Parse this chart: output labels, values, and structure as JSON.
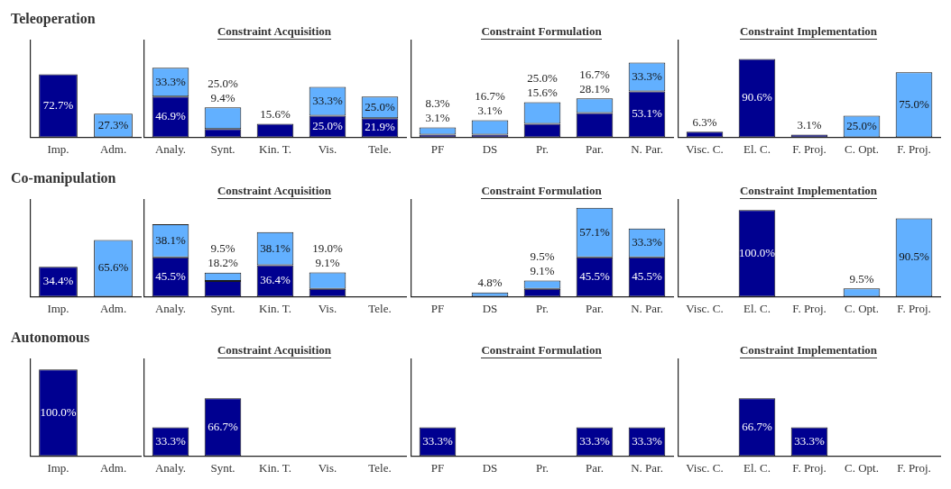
{
  "chart_data": [
    {
      "type": "bar",
      "title": "Teleoperation",
      "stacked": true,
      "tick_labels": "x",
      "grid": false,
      "legend": false,
      "categories": [
        "Imp.",
        "Adm."
      ],
      "series": [
        {
          "color": "#000090",
          "values": [
            72.7,
            0
          ],
          "value_labels": [
            "72.7%",
            null
          ]
        },
        {
          "color": "#62b0ff",
          "values": [
            0,
            27.3
          ],
          "value_labels": [
            null,
            "27.3%"
          ]
        }
      ]
    },
    {
      "type": "bar",
      "title": "Constraint Acquisition",
      "stacked": true,
      "tick_labels": "x",
      "grid": false,
      "legend": false,
      "categories": [
        "Analy.",
        "Synt.",
        "Kin. T.",
        "Vis.",
        "Tele."
      ],
      "series": [
        {
          "color": "#000090",
          "values": [
            46.9,
            9.4,
            15.6,
            25.0,
            21.9
          ],
          "value_labels": [
            "46.9%",
            "9.4%",
            "15.6%",
            "25.0%",
            "21.9%"
          ]
        },
        {
          "color": "#62b0ff",
          "values": [
            33.3,
            25.0,
            0,
            33.3,
            25.0
          ],
          "value_labels": [
            "33.3%",
            "25.0%",
            null,
            "33.3%",
            "25.0%"
          ]
        }
      ]
    },
    {
      "type": "bar",
      "title": "Constraint Formulation",
      "stacked": true,
      "tick_labels": "x",
      "grid": false,
      "legend": false,
      "categories": [
        "PF",
        "DS",
        "Pr.",
        "Par.",
        "N. Par."
      ],
      "series": [
        {
          "color": "#000090",
          "values": [
            3.1,
            3.1,
            15.6,
            28.1,
            53.1
          ],
          "value_labels": [
            "3.1%",
            "3.1%",
            "15.6%",
            "28.1%",
            "53.1%"
          ]
        },
        {
          "color": "#62b0ff",
          "values": [
            8.3,
            16.7,
            25.0,
            16.7,
            33.3
          ],
          "value_labels": [
            "8.3%",
            "16.7%",
            "25.0%",
            "16.7%",
            "33.3%"
          ]
        }
      ]
    },
    {
      "type": "bar",
      "title": "Constraint Implementation",
      "stacked": true,
      "tick_labels": "x",
      "grid": false,
      "legend": false,
      "categories": [
        "Visc. C.",
        "El. C.",
        "F. Proj.",
        "C. Opt.",
        "F. Proj."
      ],
      "series": [
        {
          "color": "#000090",
          "values": [
            6.3,
            90.6,
            3.1,
            0,
            0
          ],
          "value_labels": [
            "6.3%",
            "90.6%",
            "3.1%",
            null,
            null
          ]
        },
        {
          "color": "#62b0ff",
          "values": [
            0,
            0,
            0,
            25.0,
            75.0
          ],
          "value_labels": [
            null,
            null,
            null,
            "25.0%",
            "75.0%"
          ]
        }
      ]
    },
    {
      "type": "bar",
      "title": "Co-manipulation",
      "stacked": true,
      "tick_labels": "x",
      "grid": false,
      "legend": false,
      "categories": [
        "Imp.",
        "Adm."
      ],
      "series": [
        {
          "color": "#000090",
          "values": [
            34.4,
            0
          ],
          "value_labels": [
            "34.4%",
            null
          ]
        },
        {
          "color": "#62b0ff",
          "values": [
            0,
            65.6
          ],
          "value_labels": [
            null,
            "65.6%"
          ]
        }
      ]
    },
    {
      "type": "bar",
      "title": "Constraint Acquisition",
      "stacked": true,
      "tick_labels": "x",
      "grid": false,
      "legend": false,
      "categories": [
        "Analy.",
        "Synt.",
        "Kin. T.",
        "Vis.",
        "Tele."
      ],
      "series": [
        {
          "color": "#000090",
          "values": [
            45.5,
            18.2,
            36.4,
            9.1,
            0
          ],
          "value_labels": [
            "45.5%",
            "18.2%",
            "36.4%",
            "9.1%",
            null
          ]
        },
        {
          "color": "#62b0ff",
          "values": [
            38.1,
            9.5,
            38.1,
            19.0,
            0
          ],
          "value_labels": [
            "38.1%",
            "9.5%",
            "38.1%",
            "19.0%",
            null
          ]
        }
      ]
    },
    {
      "type": "bar",
      "title": "Constraint Formulation",
      "stacked": true,
      "tick_labels": "x",
      "grid": false,
      "legend": false,
      "categories": [
        "PF",
        "DS",
        "Pr.",
        "Par.",
        "N. Par."
      ],
      "series": [
        {
          "color": "#000090",
          "values": [
            0,
            0,
            9.1,
            45.5,
            45.5
          ],
          "value_labels": [
            null,
            null,
            "9.1%",
            "45.5%",
            "45.5%"
          ]
        },
        {
          "color": "#62b0ff",
          "values": [
            0,
            4.8,
            9.5,
            57.1,
            33.3
          ],
          "value_labels": [
            null,
            "4.8%",
            "9.5%",
            "57.1%",
            "33.3%"
          ]
        }
      ]
    },
    {
      "type": "bar",
      "title": "Constraint Implementation",
      "stacked": true,
      "tick_labels": "x",
      "grid": false,
      "legend": false,
      "categories": [
        "Visc. C.",
        "El. C.",
        "F. Proj.",
        "C. Opt.",
        "F. Proj."
      ],
      "series": [
        {
          "color": "#000090",
          "values": [
            0,
            100.0,
            0,
            0,
            0
          ],
          "value_labels": [
            null,
            "100.0%",
            null,
            null,
            null
          ]
        },
        {
          "color": "#62b0ff",
          "values": [
            0,
            0,
            0,
            9.5,
            90.5
          ],
          "value_labels": [
            null,
            null,
            null,
            "9.5%",
            "90.5%"
          ]
        }
      ]
    },
    {
      "type": "bar",
      "title": "Autonomous",
      "tick_labels": "x",
      "grid": false,
      "legend": false,
      "categories": [
        "Imp.",
        "Adm."
      ],
      "series": [
        {
          "color": "#000090",
          "values": [
            100.0,
            0
          ],
          "value_labels": [
            "100.0%",
            null
          ]
        }
      ]
    },
    {
      "type": "bar",
      "title": "Constraint Acquisition",
      "tick_labels": "x",
      "grid": false,
      "legend": false,
      "categories": [
        "Analy.",
        "Synt.",
        "Kin. T.",
        "Vis.",
        "Tele."
      ],
      "series": [
        {
          "color": "#000090",
          "values": [
            33.3,
            66.7,
            0,
            0,
            0
          ],
          "value_labels": [
            "33.3%",
            "66.7%",
            null,
            null,
            null
          ]
        }
      ]
    },
    {
      "type": "bar",
      "title": "Constraint Formulation",
      "tick_labels": "x",
      "grid": false,
      "legend": false,
      "categories": [
        "PF",
        "DS",
        "Pr.",
        "Par.",
        "N. Par."
      ],
      "series": [
        {
          "color": "#000090",
          "values": [
            33.3,
            0,
            0,
            33.3,
            33.3
          ],
          "value_labels": [
            "33.3%",
            null,
            null,
            "33.3%",
            "33.3%"
          ]
        }
      ]
    },
    {
      "type": "bar",
      "title": "Constraint Implementation",
      "tick_labels": "x",
      "grid": false,
      "legend": false,
      "categories": [
        "Visc. C.",
        "El. C.",
        "F. Proj.",
        "C. Opt.",
        "F. Proj."
      ],
      "series": [
        {
          "color": "#000090",
          "values": [
            0,
            66.7,
            33.3,
            0,
            0
          ],
          "value_labels": [
            null,
            "66.7%",
            "33.3%",
            null,
            null
          ]
        }
      ]
    }
  ]
}
